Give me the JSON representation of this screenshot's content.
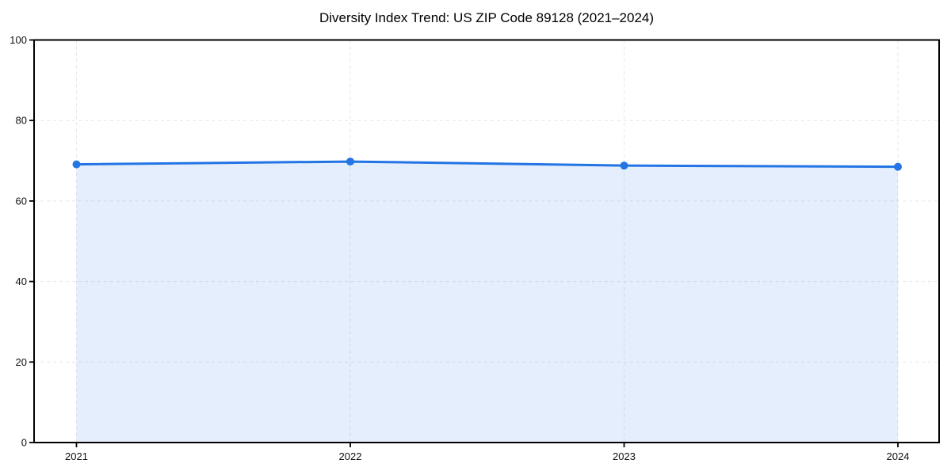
{
  "chart_data": {
    "type": "area",
    "title": "Diversity Index Trend: US ZIP Code 89128 (2021–2024)",
    "categories": [
      "2021",
      "2022",
      "2023",
      "2024"
    ],
    "values": [
      69.1,
      69.8,
      68.8,
      68.5
    ],
    "xlabel": "",
    "ylabel": "",
    "ylim": [
      0,
      100
    ],
    "y_ticks": [
      0,
      20,
      40,
      60,
      80,
      100
    ],
    "grid": true,
    "grid_style": "dashed",
    "legend": "none",
    "area_fill": true,
    "markers": true,
    "colors": {
      "line": "#2374e4",
      "fill": "#2374e4",
      "fill_opacity": 0.12,
      "grid": "#e6e6e6",
      "axis": "#000000",
      "text": "#111111",
      "background": "#ffffff"
    }
  }
}
